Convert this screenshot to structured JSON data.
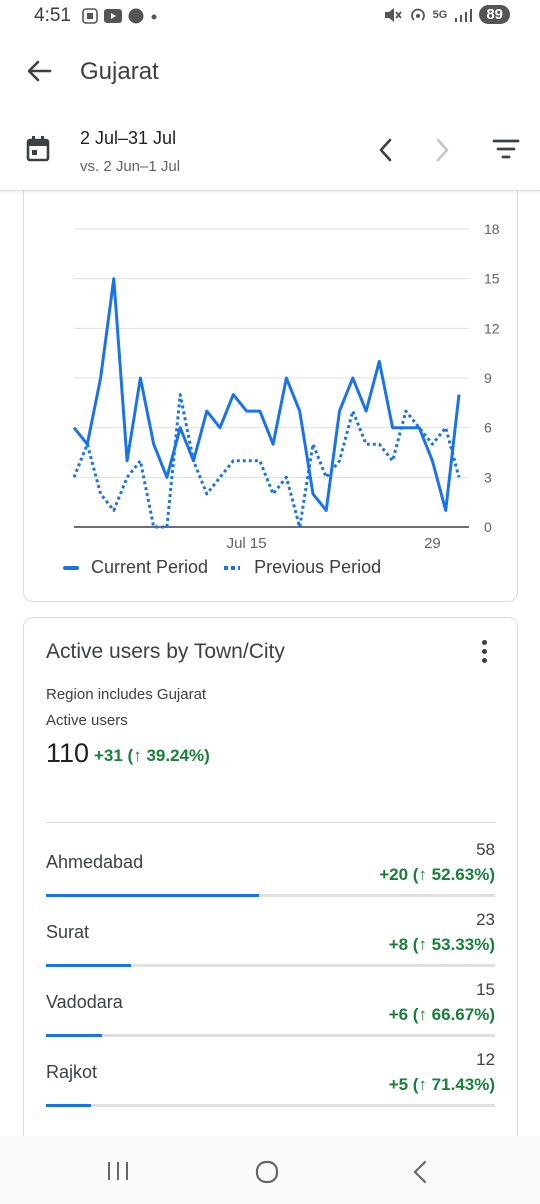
{
  "status_bar": {
    "time": "4:51",
    "battery": "89",
    "network": "5G"
  },
  "app_bar": {
    "title": "Gujarat"
  },
  "date_range": {
    "primary": "2 Jul–31 Jul",
    "comparison": "vs. 2 Jun–1 Jul"
  },
  "chart_data": {
    "type": "line",
    "x_tick_labels": [
      "Jul 15",
      "29"
    ],
    "y_ticks": [
      0,
      3,
      6,
      9,
      12,
      15,
      18
    ],
    "ylim": [
      0,
      18
    ],
    "y_axis_side": "right",
    "grid": true,
    "legend_position": "bottom",
    "series": [
      {
        "name": "Current Period",
        "style": "solid",
        "color": "#1a73e8",
        "values": [
          6,
          5,
          9,
          15,
          4,
          9,
          5,
          3,
          6,
          4,
          7,
          6,
          8,
          7,
          7,
          5,
          9,
          7,
          2,
          1,
          7,
          9,
          7,
          10,
          6,
          6,
          6,
          4,
          1,
          8
        ]
      },
      {
        "name": "Previous Period",
        "style": "dotted",
        "color": "#1a73e8",
        "values": [
          3,
          5,
          2,
          1,
          3,
          4,
          0,
          0,
          8,
          4,
          2,
          3,
          4,
          4,
          4,
          2,
          3,
          0,
          5,
          3,
          4,
          7,
          5,
          5,
          4,
          7,
          6,
          5,
          6,
          3
        ]
      }
    ]
  },
  "city_card": {
    "title": "Active users by Town/City",
    "region_note": "Region includes Gujarat",
    "metric_label": "Active users",
    "metric_value": "110",
    "metric_change": "+31 (↑ 39.24%)",
    "rows": [
      {
        "city": "Ahmedabad",
        "value": "58",
        "change": "+20 (↑ 52.63%)",
        "share": 0.475
      },
      {
        "city": "Surat",
        "value": "23",
        "change": "+8 (↑ 53.33%)",
        "share": 0.19
      },
      {
        "city": "Vadodara",
        "value": "15",
        "change": "+6 (↑ 66.67%)",
        "share": 0.125
      },
      {
        "city": "Rajkot",
        "value": "12",
        "change": "+5 (↑ 71.43%)",
        "share": 0.1
      }
    ]
  },
  "icons": {
    "back": "arrow-left-icon",
    "calendar": "calendar-icon",
    "prev": "chevron-left-icon",
    "next": "chevron-right-icon",
    "filter": "filter-icon",
    "more": "more-vert-icon"
  },
  "colors": {
    "accent": "#1a73e8",
    "positive": "#188038"
  }
}
